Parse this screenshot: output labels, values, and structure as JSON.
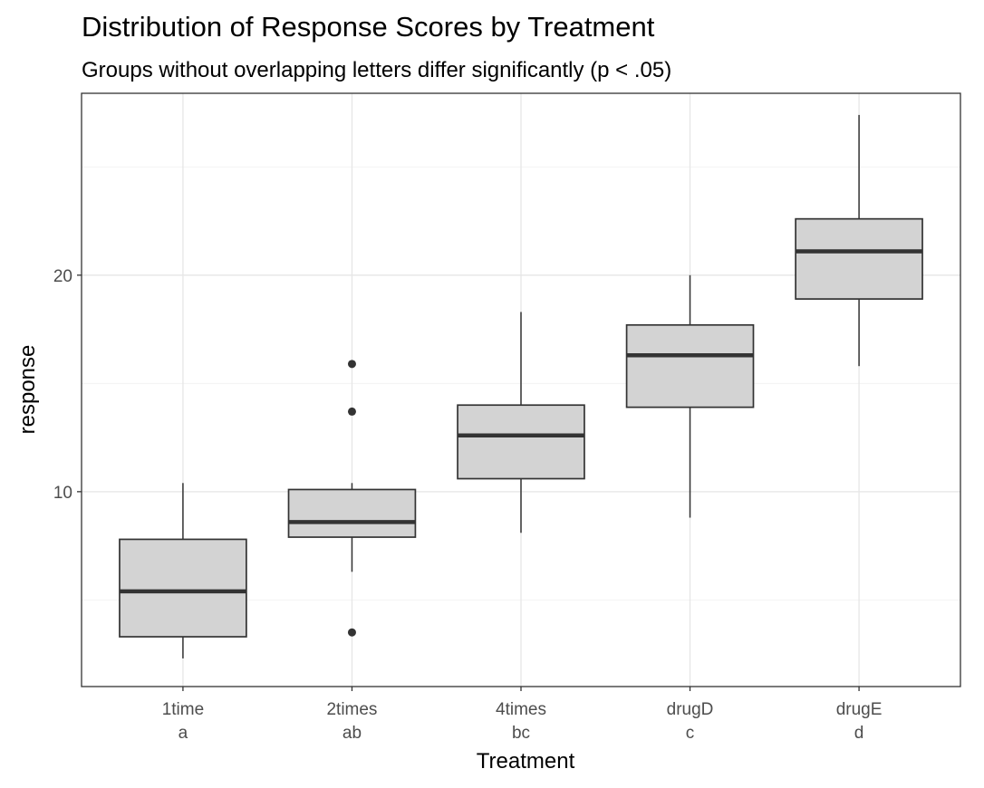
{
  "chart_data": {
    "type": "boxplot",
    "title": "Distribution of Response Scores by Treatment",
    "subtitle": "Groups without overlapping letters differ significantly (p < .05)",
    "xlabel": "Treatment",
    "ylabel": "response",
    "ylim": [
      1.0,
      28.4
    ],
    "yticks": [
      10,
      20
    ],
    "grid": true,
    "box_fill": "#d3d3d3",
    "box_stroke": "#333333",
    "categories": [
      "1time",
      "2times",
      "4times",
      "drugD",
      "drugE"
    ],
    "letters": [
      "a",
      "ab",
      "bc",
      "c",
      "d"
    ],
    "boxes": [
      {
        "whisker_low": 2.3,
        "q1": 3.3,
        "median": 5.4,
        "q3": 7.8,
        "whisker_high": 10.4,
        "outliers": []
      },
      {
        "whisker_low": 6.3,
        "q1": 7.9,
        "median": 8.6,
        "q3": 10.1,
        "whisker_high": 10.4,
        "outliers": [
          3.5,
          13.7,
          15.9
        ]
      },
      {
        "whisker_low": 8.1,
        "q1": 10.6,
        "median": 12.6,
        "q3": 14.0,
        "whisker_high": 18.3,
        "outliers": []
      },
      {
        "whisker_low": 8.8,
        "q1": 13.9,
        "median": 16.3,
        "q3": 17.7,
        "whisker_high": 20.0,
        "outliers": []
      },
      {
        "whisker_low": 15.8,
        "q1": 18.9,
        "median": 21.1,
        "q3": 22.6,
        "whisker_high": 27.4,
        "outliers": []
      }
    ]
  }
}
